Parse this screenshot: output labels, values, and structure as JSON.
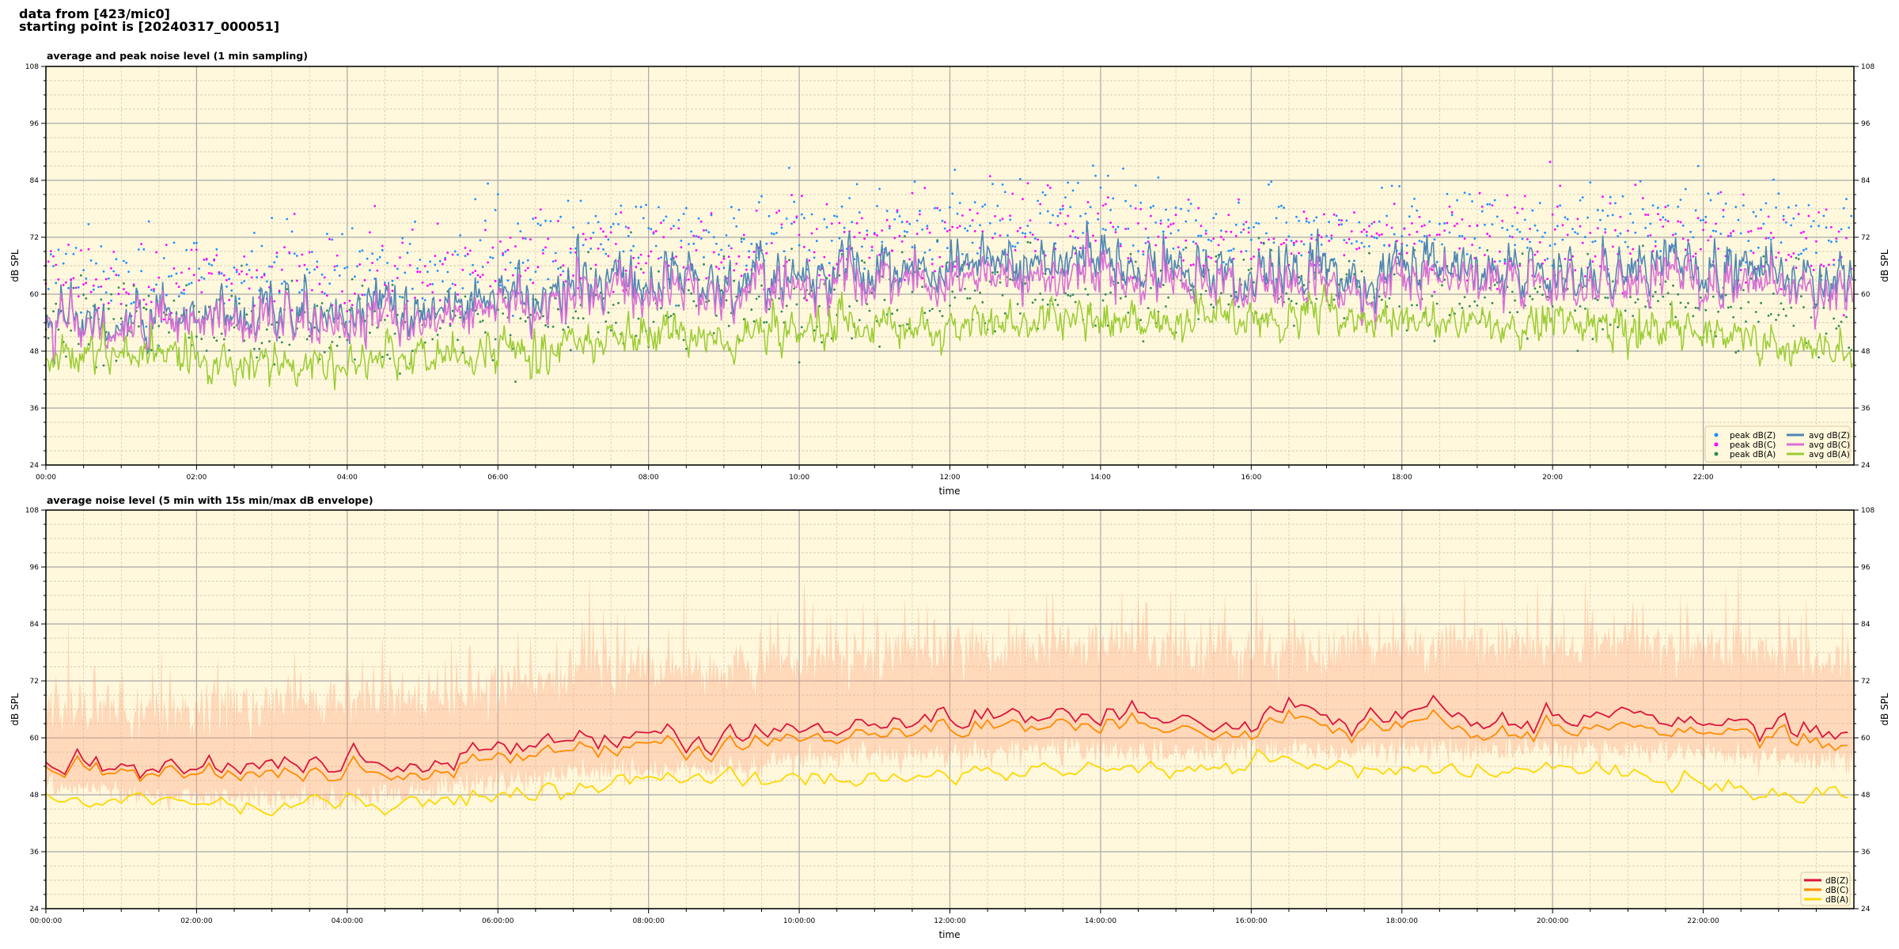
{
  "header": {
    "line1": "data from [423/mic0]",
    "line2": "starting point is [20240317_000051]"
  },
  "chart_data": [
    {
      "type": "line",
      "title": "average and peak noise level (1 min sampling)",
      "xlabel": "time",
      "ylabel": "dB SPL",
      "ylim": [
        24,
        108
      ],
      "yticks": [
        24,
        36,
        48,
        60,
        72,
        84,
        96,
        108
      ],
      "xlim_hours": [
        0,
        24
      ],
      "xticks_hours": [
        0,
        2,
        4,
        6,
        8,
        10,
        12,
        14,
        16,
        18,
        20,
        22
      ],
      "xticklabels": [
        "00:00",
        "02:00",
        "04:00",
        "06:00",
        "08:00",
        "10:00",
        "12:00",
        "14:00",
        "16:00",
        "18:00",
        "20:00",
        "22:00"
      ],
      "grid": true,
      "background": "#fff8dc",
      "legend_position": "bottom-right",
      "sampling_minutes": 1,
      "hours": [
        0,
        1,
        2,
        3,
        4,
        5,
        6,
        7,
        8,
        9,
        10,
        11,
        12,
        13,
        14,
        15,
        16,
        17,
        18,
        19,
        20,
        21,
        22,
        23,
        24
      ],
      "series": [
        {
          "name": "peak dB(Z)",
          "kind": "scatter",
          "color": "#1e90ff",
          "values": [
            65,
            64,
            64,
            65,
            65,
            66,
            68,
            70,
            71,
            72,
            73,
            74,
            75,
            76,
            76,
            74,
            74,
            74,
            75,
            75,
            74,
            75,
            75,
            74,
            73
          ]
        },
        {
          "name": "peak dB(C)",
          "kind": "scatter",
          "color": "#ff00ff",
          "values": [
            63,
            62,
            62,
            63,
            63,
            64,
            66,
            68,
            69,
            69,
            70,
            71,
            72,
            73,
            73,
            71,
            71,
            71,
            72,
            72,
            71,
            72,
            72,
            71,
            70
          ]
        },
        {
          "name": "peak dB(A)",
          "kind": "scatter",
          "color": "#2e8b57",
          "values": [
            55,
            54,
            53,
            53,
            54,
            54,
            55,
            57,
            58,
            58,
            59,
            59,
            60,
            60,
            60,
            60,
            61,
            61,
            60,
            60,
            60,
            59,
            58,
            57,
            56
          ]
        },
        {
          "name": "avg dB(Z)",
          "kind": "line",
          "color": "#4f86b5",
          "values": [
            56,
            55,
            55,
            56,
            56,
            57,
            59,
            61,
            62,
            62,
            63,
            64,
            65,
            66,
            66,
            64,
            64,
            64,
            65,
            65,
            64,
            65,
            65,
            64,
            63
          ]
        },
        {
          "name": "avg dB(C)",
          "kind": "line",
          "color": "#da70d6",
          "values": [
            55,
            54,
            54,
            54,
            54,
            55,
            57,
            59,
            60,
            60,
            61,
            62,
            62,
            63,
            63,
            62,
            62,
            61,
            62,
            63,
            62,
            62,
            62,
            61,
            60
          ]
        },
        {
          "name": "avg dB(A)",
          "kind": "line",
          "color": "#9acd32",
          "values": [
            48,
            47,
            46,
            45,
            46,
            46,
            47,
            49,
            51,
            51,
            52,
            53,
            53,
            54,
            54,
            54,
            55,
            55,
            54,
            54,
            54,
            53,
            52,
            50,
            48
          ]
        }
      ]
    },
    {
      "type": "line",
      "title": "average noise level (5 min with 15s min/max dB envelope)",
      "xlabel": "time",
      "ylabel": "dB SPL",
      "ylim": [
        24,
        108
      ],
      "yticks": [
        24,
        36,
        48,
        60,
        72,
        84,
        96,
        108
      ],
      "xlim_hours": [
        0,
        24
      ],
      "xticks_hours": [
        0,
        2,
        4,
        6,
        8,
        10,
        12,
        14,
        16,
        18,
        20,
        22
      ],
      "xticklabels": [
        "00:00:00",
        "02:00:00",
        "04:00:00",
        "06:00:00",
        "08:00:00",
        "10:00:00",
        "12:00:00",
        "14:00:00",
        "16:00:00",
        "18:00:00",
        "20:00:00",
        "22:00:00"
      ],
      "grid": true,
      "background": "#fff8dc",
      "legend_position": "bottom-right",
      "sampling_minutes": 5,
      "hours": [
        0,
        1,
        2,
        3,
        4,
        5,
        6,
        7,
        8,
        9,
        10,
        11,
        12,
        13,
        14,
        15,
        16,
        17,
        18,
        19,
        20,
        21,
        22,
        23,
        24
      ],
      "envelope": {
        "color": "#ffa07a",
        "min_values": [
          50,
          49,
          48,
          48,
          48,
          49,
          51,
          53,
          54,
          54,
          56,
          57,
          57,
          58,
          58,
          57,
          58,
          58,
          58,
          58,
          58,
          58,
          57,
          56,
          55
        ],
        "max_values": [
          66,
          65,
          65,
          67,
          67,
          68,
          70,
          73,
          74,
          74,
          76,
          77,
          78,
          79,
          79,
          77,
          78,
          78,
          79,
          79,
          78,
          79,
          78,
          77,
          75
        ]
      },
      "series": [
        {
          "name": "dB(Z)",
          "color": "#dc143c",
          "values": [
            55,
            54,
            53,
            54,
            54,
            55,
            57,
            59,
            60,
            60,
            62,
            63,
            63,
            64,
            65,
            63,
            64,
            64,
            65,
            65,
            64,
            65,
            64,
            63,
            62
          ]
        },
        {
          "name": "dB(C)",
          "color": "#ff8c00",
          "values": [
            54,
            53,
            52,
            52,
            52,
            53,
            55,
            57,
            58,
            58,
            60,
            61,
            61,
            62,
            63,
            61,
            62,
            62,
            63,
            62,
            62,
            62,
            62,
            61,
            59
          ]
        },
        {
          "name": "dB(A)",
          "color": "#ffd700",
          "values": [
            48,
            47,
            46,
            45,
            46,
            46,
            47,
            49,
            51,
            51,
            52,
            52,
            52,
            53,
            53,
            53,
            54,
            54,
            53,
            53,
            53,
            52,
            51,
            49,
            48
          ]
        }
      ]
    }
  ]
}
